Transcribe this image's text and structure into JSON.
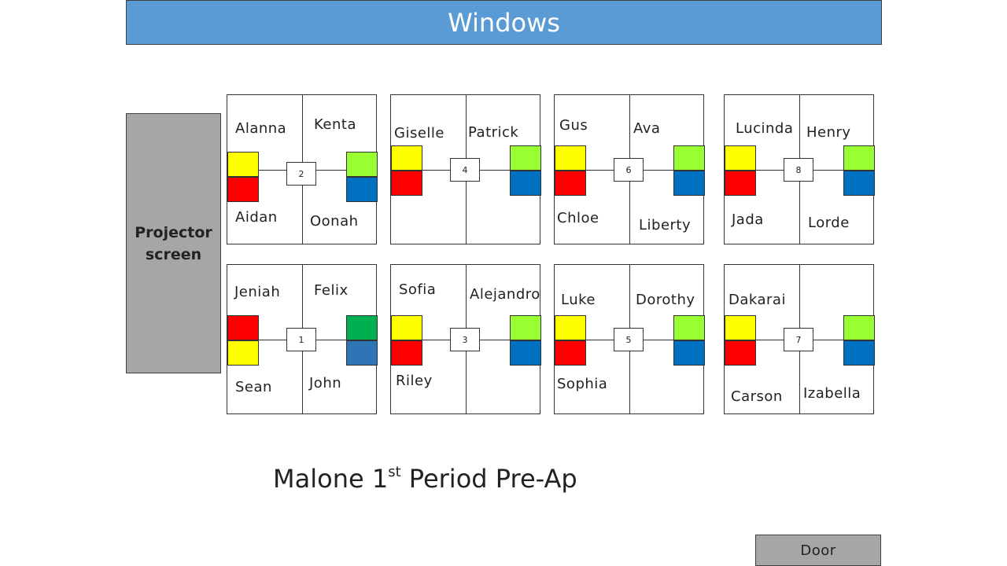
{
  "header": {
    "windows_label": "Windows"
  },
  "projector": {
    "line1": "Projector",
    "line2": "screen"
  },
  "colors": {
    "yellow": "#ffff00",
    "red": "#ff0000",
    "lime": "#99ff33",
    "blue": "#0070c0",
    "green": "#00b050",
    "steel_blue": "#2e75b6"
  },
  "tables": [
    {
      "number": "2",
      "names": {
        "tl": "Alanna",
        "tr": "Kenta",
        "bl": "Aidan",
        "br": "Oonah"
      },
      "colors": {
        "lt": "#ffff00",
        "lb": "#ff0000",
        "rt": "#99ff33",
        "rb": "#0070c0"
      }
    },
    {
      "number": "4",
      "names": {
        "tl": "Giselle",
        "tr": "Patrick",
        "bl": "",
        "br": ""
      },
      "colors": {
        "lt": "#ffff00",
        "lb": "#ff0000",
        "rt": "#99ff33",
        "rb": "#0070c0"
      }
    },
    {
      "number": "6",
      "names": {
        "tl": "Gus",
        "tr": "Ava",
        "bl": "Chloe",
        "br": "Liberty"
      },
      "colors": {
        "lt": "#ffff00",
        "lb": "#ff0000",
        "rt": "#99ff33",
        "rb": "#0070c0"
      }
    },
    {
      "number": "8",
      "names": {
        "tl": "Lucinda",
        "tr": "Henry",
        "bl": "Jada",
        "br": "Lorde"
      },
      "colors": {
        "lt": "#ffff00",
        "lb": "#ff0000",
        "rt": "#99ff33",
        "rb": "#0070c0"
      }
    },
    {
      "number": "1",
      "names": {
        "tl": "Jeniah",
        "tr": "Felix",
        "bl": "Sean",
        "br": "John"
      },
      "colors": {
        "lt": "#ff0000",
        "lb": "#ffff00",
        "rt": "#00b050",
        "rb": "#2e75b6"
      }
    },
    {
      "number": "3",
      "names": {
        "tl": "Sofia",
        "tr": "Alejandro",
        "bl": "Riley",
        "br": ""
      },
      "colors": {
        "lt": "#ffff00",
        "lb": "#ff0000",
        "rt": "#99ff33",
        "rb": "#0070c0"
      }
    },
    {
      "number": "5",
      "names": {
        "tl": "Luke",
        "tr": "Dorothy",
        "bl": "Sophia",
        "br": ""
      },
      "colors": {
        "lt": "#ffff00",
        "lb": "#ff0000",
        "rt": "#99ff33",
        "rb": "#0070c0"
      }
    },
    {
      "number": "7",
      "names": {
        "tl": "Dakarai",
        "tr": "",
        "bl": "Carson",
        "br": "Izabella"
      },
      "colors": {
        "lt": "#ffff00",
        "lb": "#ff0000",
        "rt": "#99ff33",
        "rb": "#0070c0"
      }
    }
  ],
  "title": {
    "prefix": "Malone 1",
    "sup": "st",
    "suffix": " Period Pre-Ap"
  },
  "door": {
    "label": "Door"
  }
}
